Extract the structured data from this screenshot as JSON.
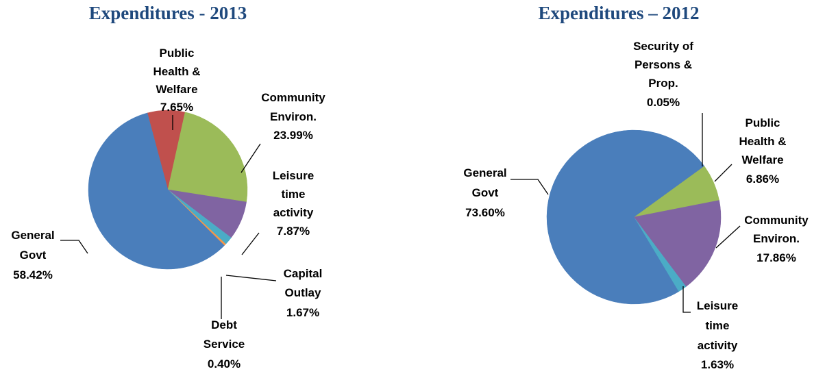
{
  "chart_data": [
    {
      "type": "pie",
      "title": "Expenditures - 2013",
      "categories": [
        "Public Health & Welfare",
        "Community Environ.",
        "Leisure time activity",
        "Capital Outlay",
        "Debt Service",
        "General Govt"
      ],
      "values": [
        7.65,
        23.99,
        7.87,
        1.67,
        0.4,
        58.42
      ],
      "value_labels": [
        "7.65%",
        "23.99%",
        "7.87%",
        "1.67%",
        "0.40%",
        "58.42%"
      ],
      "colors": [
        "#c0504d",
        "#9bbb59",
        "#8064a2",
        "#4bacc6",
        "#f79646",
        "#4a7ebb"
      ]
    },
    {
      "type": "pie",
      "title": "Expenditures – 2012",
      "categories": [
        "Security of Persons & Prop.",
        "Public Health & Welfare",
        "Community Environ.",
        "Leisure time activity",
        "General Govt"
      ],
      "values": [
        0.05,
        6.86,
        17.86,
        1.63,
        73.6
      ],
      "value_labels": [
        "0.05%",
        "6.86%",
        "17.86%",
        "1.63%",
        "73.60%"
      ],
      "colors": [
        "#c0504d",
        "#9bbb59",
        "#8064a2",
        "#4bacc6",
        "#4a7ebb"
      ]
    }
  ]
}
